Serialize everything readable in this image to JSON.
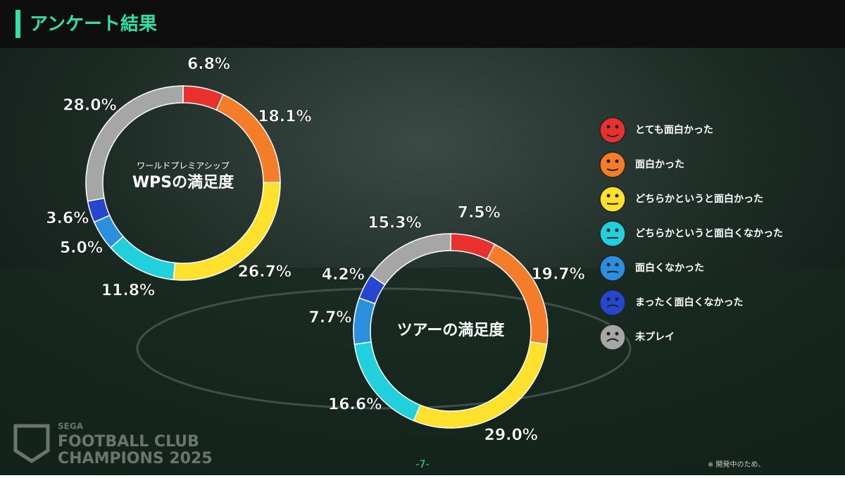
{
  "header": {
    "title": "アンケート結果"
  },
  "chart_data": [
    {
      "type": "pie",
      "title": "WPSの満足度",
      "subtitle": "ワールドプレミアシップ",
      "categories": [
        "とても面白かった",
        "面白かった",
        "どちらかというと面白かった",
        "どちらかというと面白くなかった",
        "面白くなかった",
        "まったく面白くなかった",
        "未プレイ"
      ],
      "values": [
        6.8,
        18.1,
        26.7,
        11.8,
        5.0,
        3.6,
        28.0
      ],
      "value_labels": [
        "6.8%",
        "18.1%",
        "26.7%",
        "11.8%",
        "5.0%",
        "3.6%",
        "28.0%"
      ],
      "colors": [
        "#e8302f",
        "#f57c28",
        "#fde12d",
        "#22d0dc",
        "#2a8fdc",
        "#2546cf",
        "#a6a6a6"
      ]
    },
    {
      "type": "pie",
      "title": "ツアーの満足度",
      "categories": [
        "とても面白かった",
        "面白かった",
        "どちらかというと面白かった",
        "どちらかというと面白くなかった",
        "面白くなかった",
        "まったく面白くなかった",
        "未プレイ"
      ],
      "values": [
        7.5,
        19.7,
        29.0,
        16.6,
        7.7,
        4.2,
        15.3
      ],
      "value_labels": [
        "7.5%",
        "19.7%",
        "29.0%",
        "16.6%",
        "7.7%",
        "4.2%",
        "15.3%"
      ],
      "colors": [
        "#e8302f",
        "#f57c28",
        "#fde12d",
        "#22d0dc",
        "#2a8fdc",
        "#2546cf",
        "#a6a6a6"
      ]
    }
  ],
  "footer": {
    "page": "-7-",
    "note": "※ 開発中のため、",
    "logo": [
      "SEGA",
      "FOOTBALL CLUB",
      "CHAMPIONS 2025"
    ]
  }
}
